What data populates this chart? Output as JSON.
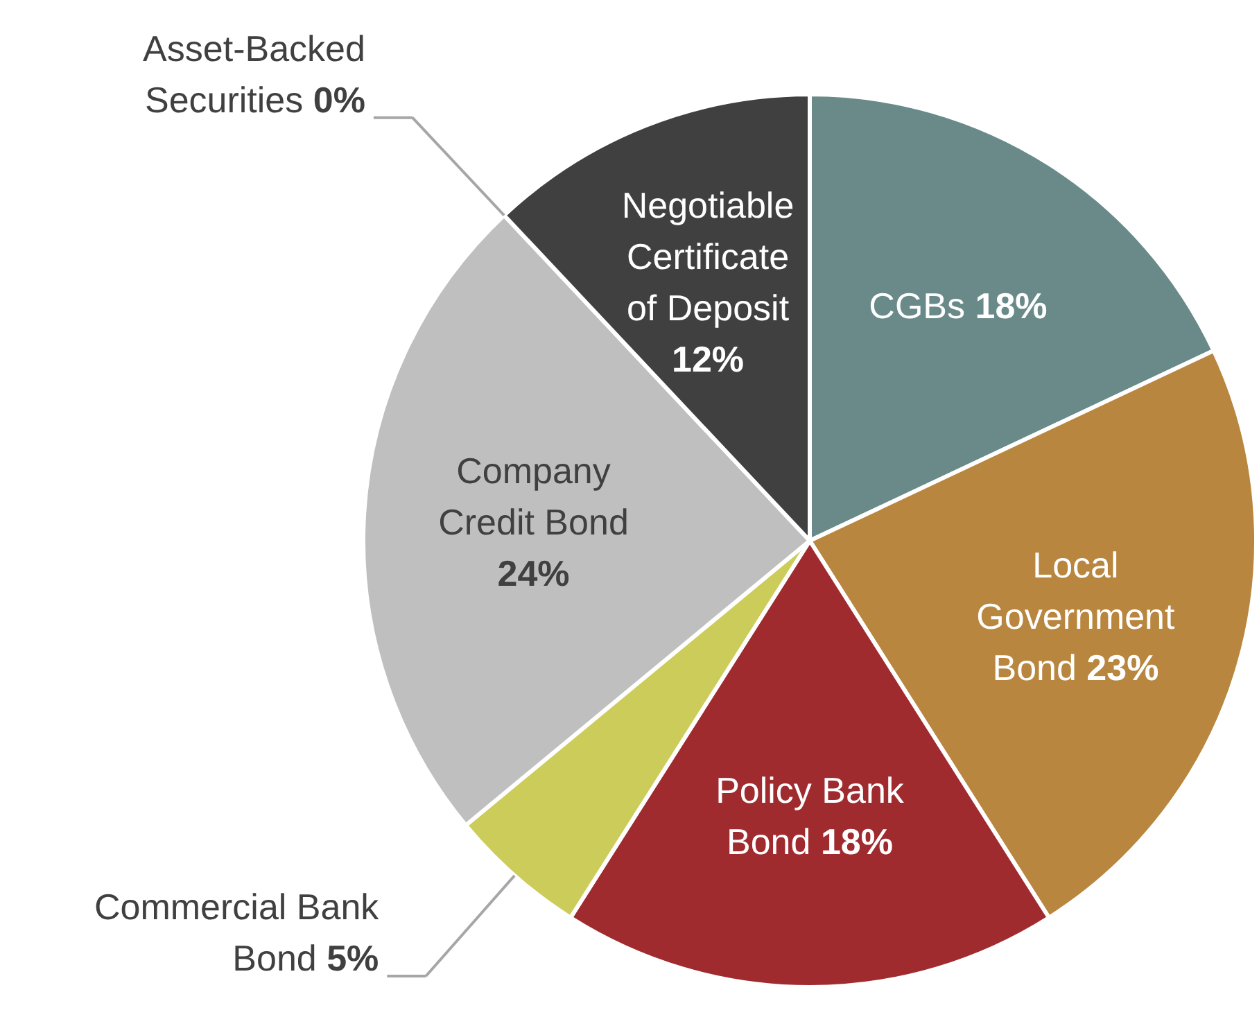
{
  "chart_data": {
    "type": "pie",
    "categories": [
      "CGBs",
      "Local Government Bond",
      "Policy Bank Bond",
      "Commercial Bank Bond",
      "Company Credit Bond",
      "Asset-Backed Securities",
      "Negotiable Certificate of Deposit"
    ],
    "values": [
      18,
      23,
      18,
      5,
      24,
      0,
      12
    ],
    "value_labels": [
      "18%",
      "23%",
      "18%",
      "5%",
      "24%",
      "0%",
      "12%"
    ],
    "colors": [
      "#6a8a8a",
      "#b8863e",
      "#a02b2e",
      "#cccc5a",
      "#bfbfbf",
      "#5b7fa6",
      "#404040"
    ]
  }
}
